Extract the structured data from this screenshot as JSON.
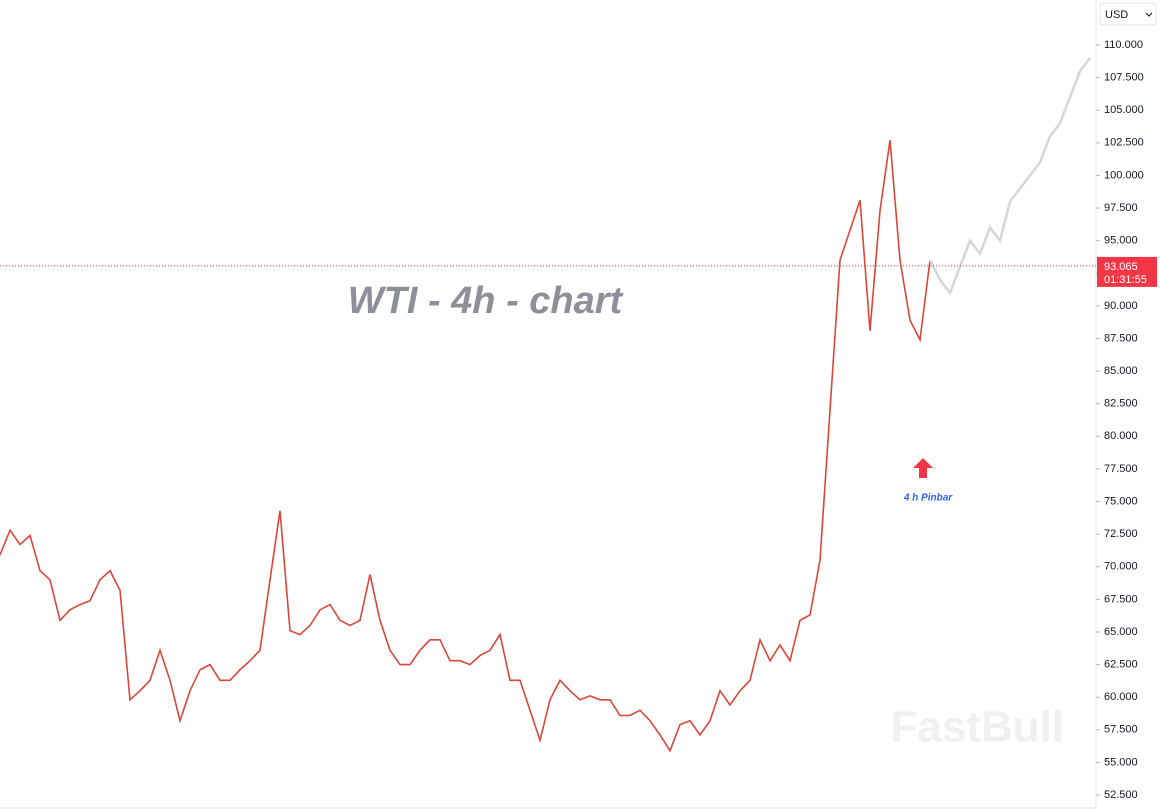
{
  "chart_data": {
    "type": "line",
    "title": "WTI - 4h - chart",
    "annotation": "4 h Pinbar",
    "currency": "USD",
    "watermark": "FastBull",
    "last_price": {
      "value": 93.065,
      "label": "93.065"
    },
    "countdown": "01:31:55",
    "categories": [
      null,
      null,
      null,
      null,
      null,
      null,
      null,
      null,
      null,
      null,
      null,
      null,
      null,
      null,
      null,
      null,
      null,
      null,
      null,
      null,
      null,
      null,
      null,
      null,
      null,
      null,
      null,
      null,
      null,
      null,
      null,
      null,
      null,
      null,
      null,
      null,
      null,
      null,
      null,
      null,
      null,
      null,
      null,
      null,
      null,
      null,
      null,
      null,
      null,
      null,
      null,
      null,
      null,
      null,
      null,
      null,
      null,
      null,
      null,
      null,
      null,
      null,
      null,
      null,
      null,
      null,
      null,
      null,
      null,
      null,
      null,
      null,
      null,
      null,
      null,
      null,
      null,
      null,
      null,
      null,
      null,
      null,
      null,
      null,
      null,
      null,
      null,
      null,
      null,
      null,
      null,
      null,
      null,
      null,
      null,
      null,
      null,
      null,
      null,
      null,
      null,
      null,
      null,
      null,
      null,
      null,
      null,
      null,
      null,
      null
    ],
    "series": [
      {
        "color": "#d9473a",
        "values": [
          70.9,
          72.8,
          71.7,
          72.4,
          69.7,
          69,
          65.9,
          66.7,
          67.1,
          67.4,
          69,
          69.7,
          68.2,
          59.8,
          60.5,
          61.3,
          63.6,
          61.3,
          58.2,
          60.5,
          62.1,
          62.5,
          61.3,
          61.3,
          62.1,
          62.8,
          63.6,
          69,
          74.3,
          65.1,
          64.8,
          65.5,
          66.7,
          67.1,
          65.9,
          65.5,
          65.9,
          69.4,
          65.9,
          63.6,
          62.5,
          62.5,
          63.6,
          64.4,
          64.4,
          62.8,
          62.8,
          62.5,
          63.2,
          63.6,
          64.8,
          61.3,
          61.3,
          59,
          56.7,
          59.8,
          61.3,
          60.5,
          59.8,
          60.1,
          59.8,
          59.8,
          58.6,
          58.6,
          59,
          58.2,
          57.1,
          55.9,
          57.9,
          58.2,
          57.1,
          58.2,
          60.5,
          59.4,
          60.5,
          61.3,
          64.4,
          62.8,
          64,
          62.8,
          65.9,
          66.3,
          70.5,
          82,
          93.5,
          95.8,
          98.1,
          88.1,
          97.3,
          102.7,
          93.5,
          88.9,
          87.4,
          93.5,
          null,
          null,
          null,
          null,
          null,
          null,
          null,
          null,
          null,
          null,
          null,
          null,
          null,
          null,
          null,
          null
        ]
      },
      {
        "color": "#d6d6d6",
        "values": [
          null,
          null,
          null,
          null,
          null,
          null,
          null,
          null,
          null,
          null,
          null,
          null,
          null,
          null,
          null,
          null,
          null,
          null,
          null,
          null,
          null,
          null,
          null,
          null,
          null,
          null,
          null,
          null,
          null,
          null,
          null,
          null,
          null,
          null,
          null,
          null,
          null,
          null,
          null,
          null,
          null,
          null,
          null,
          null,
          null,
          null,
          null,
          null,
          null,
          null,
          null,
          null,
          null,
          null,
          null,
          null,
          null,
          null,
          null,
          null,
          null,
          null,
          null,
          null,
          null,
          null,
          null,
          null,
          null,
          null,
          null,
          null,
          null,
          null,
          null,
          null,
          null,
          null,
          null,
          null,
          null,
          null,
          null,
          null,
          null,
          null,
          null,
          null,
          null,
          null,
          null,
          null,
          null,
          93.5,
          92,
          91,
          93,
          95,
          94,
          96,
          95,
          98,
          99,
          100,
          101,
          103,
          104,
          106,
          108,
          109
        ]
      }
    ],
    "ylim": [
      51.43,
      113.45
    ],
    "yticks": [
      {
        "value": 52.5,
        "label": "52.500"
      },
      {
        "value": 55,
        "label": "55.000"
      },
      {
        "value": 57.5,
        "label": "57.500"
      },
      {
        "value": 60,
        "label": "60.000"
      },
      {
        "value": 62.5,
        "label": "62.500"
      },
      {
        "value": 65,
        "label": "65.000"
      },
      {
        "value": 67.5,
        "label": "67.500"
      },
      {
        "value": 70,
        "label": "70.000"
      },
      {
        "value": 72.5,
        "label": "72.500"
      },
      {
        "value": 75,
        "label": "75.000"
      },
      {
        "value": 77.5,
        "label": "77.500"
      },
      {
        "value": 80,
        "label": "80.000"
      },
      {
        "value": 82.5,
        "label": "82.500"
      },
      {
        "value": 85,
        "label": "85.000"
      },
      {
        "value": 87.5,
        "label": "87.500"
      },
      {
        "value": 90,
        "label": "90.000"
      },
      {
        "value": 92.5,
        "label": "92.500"
      },
      {
        "value": 95,
        "label": "95.000"
      },
      {
        "value": 97.5,
        "label": "97.500"
      },
      {
        "value": 100,
        "label": "100.000"
      },
      {
        "value": 102.5,
        "label": "102.500"
      },
      {
        "value": 105,
        "label": "105.000"
      },
      {
        "value": 107.5,
        "label": "107.500"
      },
      {
        "value": 110,
        "label": "110.000"
      }
    ]
  }
}
